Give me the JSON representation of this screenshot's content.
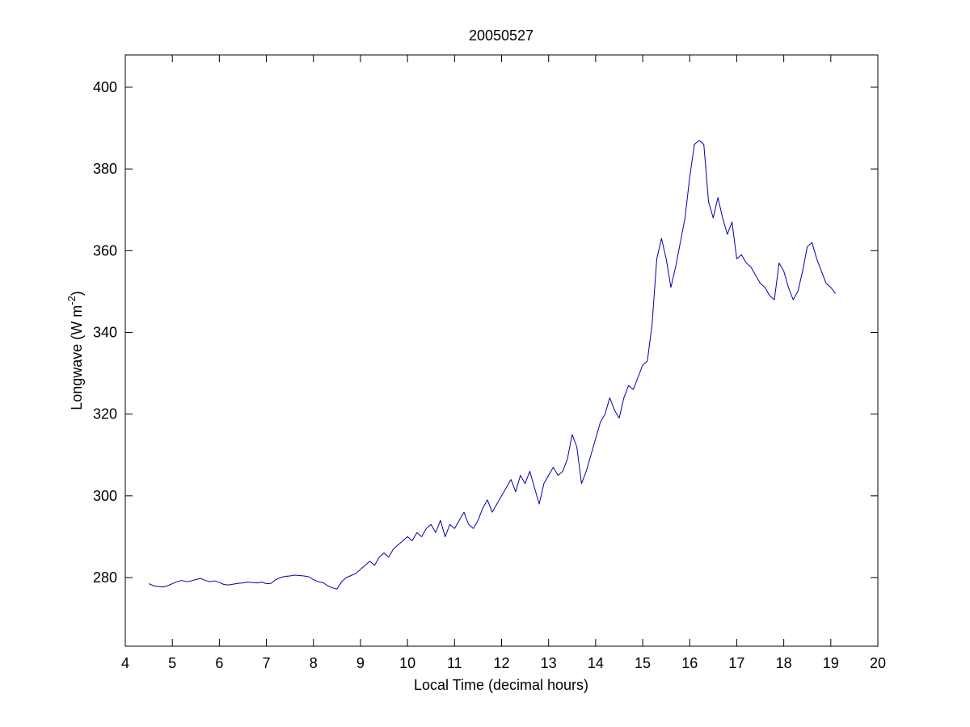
{
  "chart_data": {
    "type": "line",
    "title": "20050527",
    "xlabel": "Local Time (decimal hours)",
    "ylabel": {
      "text": "Longwave (W m",
      "superscript": "-2",
      "suffix": ")"
    },
    "x": [
      4.5,
      4.6,
      4.7,
      4.8,
      4.9,
      5.0,
      5.1,
      5.2,
      5.3,
      5.4,
      5.5,
      5.6,
      5.7,
      5.8,
      5.9,
      6.0,
      6.1,
      6.2,
      6.3,
      6.4,
      6.5,
      6.6,
      6.7,
      6.8,
      6.9,
      7.0,
      7.1,
      7.2,
      7.3,
      7.4,
      7.5,
      7.6,
      7.7,
      7.8,
      7.9,
      8.0,
      8.1,
      8.2,
      8.3,
      8.4,
      8.5,
      8.6,
      8.7,
      8.8,
      8.9,
      9.0,
      9.1,
      9.2,
      9.3,
      9.4,
      9.5,
      9.6,
      9.7,
      9.8,
      9.9,
      10.0,
      10.1,
      10.2,
      10.3,
      10.4,
      10.5,
      10.6,
      10.7,
      10.8,
      10.9,
      11.0,
      11.1,
      11.2,
      11.3,
      11.4,
      11.5,
      11.6,
      11.7,
      11.8,
      11.9,
      12.0,
      12.1,
      12.2,
      12.3,
      12.4,
      12.5,
      12.6,
      12.7,
      12.8,
      12.9,
      13.0,
      13.1,
      13.2,
      13.3,
      13.4,
      13.5,
      13.6,
      13.7,
      13.8,
      13.9,
      14.0,
      14.1,
      14.2,
      14.3,
      14.4,
      14.5,
      14.6,
      14.7,
      14.8,
      14.9,
      15.0,
      15.1,
      15.2,
      15.3,
      15.4,
      15.5,
      15.6,
      15.7,
      15.8,
      15.9,
      16.0,
      16.1,
      16.2,
      16.3,
      16.4,
      16.5,
      16.6,
      16.7,
      16.8,
      16.9,
      17.0,
      17.1,
      17.2,
      17.3,
      17.4,
      17.5,
      17.6,
      17.7,
      17.8,
      17.9,
      18.0,
      18.1,
      18.2,
      18.3,
      18.4,
      18.5,
      18.6,
      18.7,
      18.8,
      18.9,
      19.0,
      19.1
    ],
    "series": [
      {
        "name": "Longwave",
        "color": "#0000a8",
        "values": [
          278.5,
          278,
          277.8,
          277.7,
          278,
          278.5,
          279,
          279.3,
          279,
          279.2,
          279.5,
          279.8,
          279.3,
          279,
          279.2,
          278.8,
          278.3,
          278.2,
          278.4,
          278.6,
          278.7,
          278.9,
          278.8,
          278.7,
          278.9,
          278.5,
          278.6,
          279.5,
          280,
          280.3,
          280.4,
          280.6,
          280.5,
          280.4,
          280.2,
          279.5,
          279,
          278.8,
          278,
          277.5,
          277.2,
          279,
          280,
          280.5,
          281,
          282,
          283,
          284,
          283,
          285,
          286,
          285,
          287,
          288,
          289,
          290,
          289,
          291,
          290,
          292,
          293,
          291,
          294,
          290,
          293,
          292,
          294,
          296,
          293,
          292,
          294,
          297,
          299,
          296,
          298,
          300,
          302,
          304,
          301,
          305,
          303,
          306,
          302,
          298,
          303,
          305,
          307,
          305,
          306,
          309,
          315,
          312,
          303,
          306,
          310,
          314,
          318,
          320,
          324,
          321,
          319,
          324,
          327,
          326,
          329,
          332,
          333,
          342,
          358,
          363,
          358,
          351,
          356,
          362,
          368,
          378,
          386,
          387,
          386,
          372,
          368,
          373,
          368,
          364,
          367,
          358,
          359,
          357,
          356,
          354,
          352,
          351,
          349,
          348,
          357,
          355,
          351,
          348,
          350,
          355,
          361,
          362,
          358,
          355,
          352,
          351,
          349.5
        ]
      }
    ],
    "xlim": [
      4,
      20
    ],
    "xticks": [
      4,
      5,
      6,
      7,
      8,
      9,
      10,
      11,
      12,
      13,
      14,
      15,
      16,
      17,
      18,
      19,
      20
    ],
    "ylim": [
      263.2,
      407.9
    ],
    "yticks": [
      280,
      300,
      320,
      340,
      360,
      380,
      400
    ],
    "grid": false
  }
}
